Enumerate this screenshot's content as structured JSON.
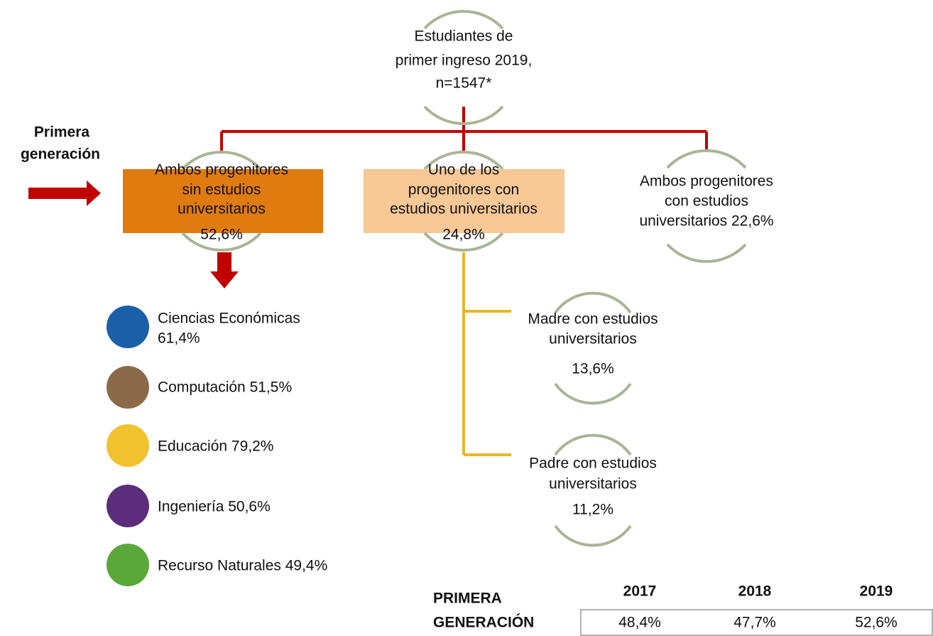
{
  "root": {
    "lines": [
      "Estudiantes de",
      "primer ingreso 2019,",
      "n=1547*"
    ]
  },
  "side_label": {
    "lines": [
      "Primera",
      "generación"
    ]
  },
  "nodes": [
    {
      "lines": [
        "Ambos progenitores",
        "sin  estudios",
        "universitarios"
      ],
      "pct": "52,6%"
    },
    {
      "lines": [
        "Uno de los",
        "progenitores con",
        "estudios universitarios"
      ],
      "pct": "24,8%"
    },
    {
      "lines": [
        "Ambos progenitores",
        "con estudios",
        "universitarios 22,6%"
      ]
    }
  ],
  "children": [
    {
      "lines": [
        "Madre con estudios",
        "universitarios"
      ],
      "pct": "13,6%"
    },
    {
      "lines": [
        "Padre con estudios",
        "universitarios"
      ],
      "pct": "11,2%"
    }
  ],
  "faculties": [
    {
      "lines": [
        "Ciencias Económicas",
        "61,4%"
      ]
    },
    {
      "lines": [
        "Computación 51,5%"
      ]
    },
    {
      "lines": [
        "Educación 79,2%"
      ]
    },
    {
      "lines": [
        "Ingeniería 50,6%"
      ]
    },
    {
      "lines": [
        "Recurso Naturales 49,4%"
      ]
    }
  ],
  "table": {
    "header": [
      "PRIMERA",
      "GENERACIÓN"
    ],
    "columns": [
      "2017",
      "2018",
      "2019"
    ],
    "rows": [
      [
        "48,4%",
        "47,7%",
        "52,6%"
      ]
    ]
  }
}
